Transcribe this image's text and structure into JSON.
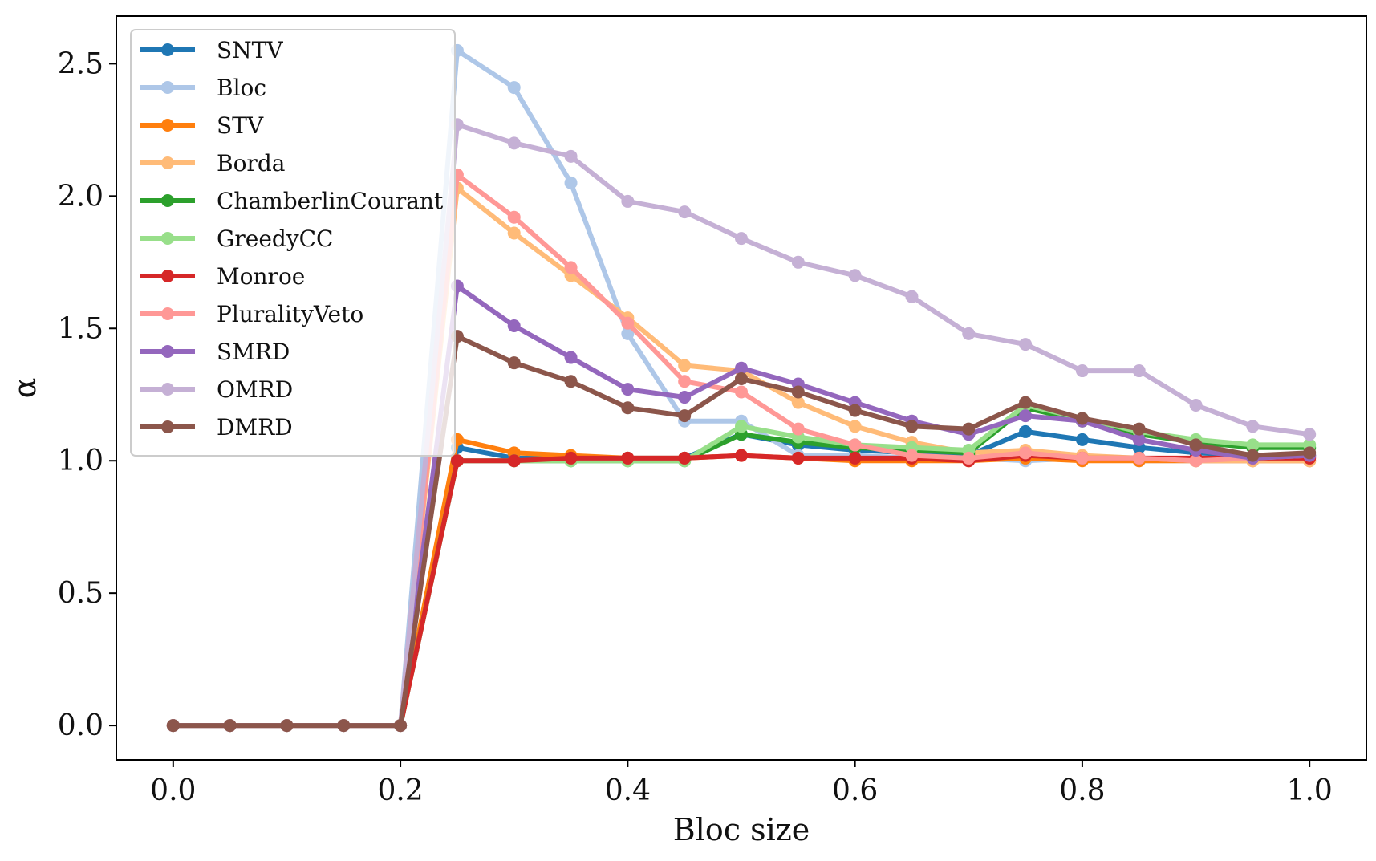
{
  "chart_data": {
    "type": "line",
    "title": "",
    "xlabel": "Bloc size",
    "ylabel": "α",
    "xlim": [
      -0.05,
      1.05
    ],
    "ylim": [
      -0.13,
      2.68
    ],
    "xticks": [
      0.0,
      0.2,
      0.4,
      0.6,
      0.8,
      1.0
    ],
    "xtick_labels": [
      "0.0",
      "0.2",
      "0.4",
      "0.6",
      "0.8",
      "1.0"
    ],
    "yticks": [
      0.0,
      0.5,
      1.0,
      1.5,
      2.0,
      2.5
    ],
    "ytick_labels": [
      "0.0",
      "0.5",
      "1.0",
      "1.5",
      "2.0",
      "2.5"
    ],
    "grid": false,
    "legend_position": "top-left",
    "x": [
      0.0,
      0.05,
      0.1,
      0.15,
      0.2,
      0.25,
      0.3,
      0.35,
      0.4,
      0.45,
      0.5,
      0.55,
      0.6,
      0.65,
      0.7,
      0.75,
      0.8,
      0.85,
      0.9,
      0.95,
      1.0
    ],
    "series": [
      {
        "name": "SNTV",
        "color": "#1f77b4",
        "values": [
          0,
          0,
          0,
          0,
          0,
          1.05,
          1.01,
          1.01,
          1.01,
          1.01,
          1.1,
          1.06,
          1.04,
          1.03,
          1.02,
          1.11,
          1.08,
          1.05,
          1.03,
          1.02,
          1.02
        ]
      },
      {
        "name": "Bloc",
        "color": "#aec7e8",
        "values": [
          0,
          0,
          0,
          0,
          0,
          2.55,
          2.41,
          2.05,
          1.48,
          1.15,
          1.15,
          1.02,
          1.02,
          1.01,
          1.01,
          1.0,
          1.01,
          1.0,
          1.0,
          1.0,
          1.0
        ]
      },
      {
        "name": "STV",
        "color": "#ff7f0e",
        "values": [
          0,
          0,
          0,
          0,
          0,
          1.08,
          1.03,
          1.02,
          1.01,
          1.01,
          1.02,
          1.01,
          1.0,
          1.0,
          1.0,
          1.01,
          1.0,
          1.0,
          1.0,
          1.0,
          1.0
        ]
      },
      {
        "name": "Borda",
        "color": "#ffbb78",
        "values": [
          0,
          0,
          0,
          0,
          0,
          2.03,
          1.86,
          1.7,
          1.54,
          1.36,
          1.34,
          1.22,
          1.13,
          1.07,
          1.03,
          1.04,
          1.02,
          1.01,
          1.0,
          1.0,
          1.0
        ]
      },
      {
        "name": "ChamberlinCourant",
        "color": "#2ca02c",
        "values": [
          0,
          0,
          0,
          0,
          0,
          1.0,
          1.0,
          1.0,
          1.0,
          1.0,
          1.1,
          1.07,
          1.05,
          1.04,
          1.03,
          1.2,
          1.15,
          1.1,
          1.07,
          1.05,
          1.05
        ]
      },
      {
        "name": "GreedyCC",
        "color": "#98df8a",
        "values": [
          0,
          0,
          0,
          0,
          0,
          1.0,
          1.0,
          1.0,
          1.0,
          1.0,
          1.13,
          1.09,
          1.06,
          1.05,
          1.04,
          1.21,
          1.16,
          1.11,
          1.08,
          1.06,
          1.06
        ]
      },
      {
        "name": "Monroe",
        "color": "#d62728",
        "values": [
          0,
          0,
          0,
          0,
          0,
          1.0,
          1.0,
          1.01,
          1.01,
          1.01,
          1.02,
          1.01,
          1.01,
          1.01,
          1.0,
          1.02,
          1.01,
          1.01,
          1.01,
          1.01,
          1.01
        ]
      },
      {
        "name": "PluralityVeto",
        "color": "#ff9896",
        "values": [
          0,
          0,
          0,
          0,
          0,
          2.08,
          1.92,
          1.73,
          1.52,
          1.3,
          1.26,
          1.12,
          1.06,
          1.02,
          1.01,
          1.03,
          1.01,
          1.01,
          1.0,
          1.01,
          1.02
        ]
      },
      {
        "name": "SMRD",
        "color": "#9467bd",
        "values": [
          0,
          0,
          0,
          0,
          0,
          1.66,
          1.51,
          1.39,
          1.27,
          1.24,
          1.35,
          1.29,
          1.22,
          1.15,
          1.1,
          1.17,
          1.15,
          1.08,
          1.04,
          1.01,
          1.02
        ]
      },
      {
        "name": "OMRD",
        "color": "#c5b0d5",
        "values": [
          0,
          0,
          0,
          0,
          0,
          2.27,
          2.2,
          2.15,
          1.98,
          1.94,
          1.84,
          1.75,
          1.7,
          1.62,
          1.48,
          1.44,
          1.34,
          1.34,
          1.21,
          1.13,
          1.1
        ]
      },
      {
        "name": "DMRD",
        "color": "#8c564b",
        "values": [
          0,
          0,
          0,
          0,
          0,
          1.47,
          1.37,
          1.3,
          1.2,
          1.17,
          1.31,
          1.26,
          1.19,
          1.13,
          1.12,
          1.22,
          1.16,
          1.12,
          1.06,
          1.02,
          1.03
        ]
      }
    ]
  }
}
